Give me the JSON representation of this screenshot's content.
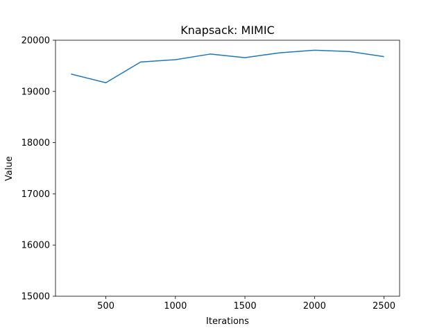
{
  "chart_data": {
    "type": "line",
    "title": "Knapsack: MIMIC",
    "xlabel": "Iterations",
    "ylabel": "Value",
    "xlim": [
      138,
      2612
    ],
    "ylim": [
      15000,
      20000
    ],
    "xticks": [
      500,
      1000,
      1500,
      2000,
      2500
    ],
    "yticks": [
      15000,
      16000,
      17000,
      18000,
      19000,
      20000
    ],
    "grid": false,
    "series": [
      {
        "color": "#1f77b4",
        "x": [
          250,
          500,
          750,
          1000,
          1250,
          1500,
          1750,
          2000,
          2250,
          2500
        ],
        "y": [
          19340,
          19170,
          19575,
          19620,
          19730,
          19660,
          19755,
          19805,
          19780,
          19680
        ]
      }
    ]
  }
}
